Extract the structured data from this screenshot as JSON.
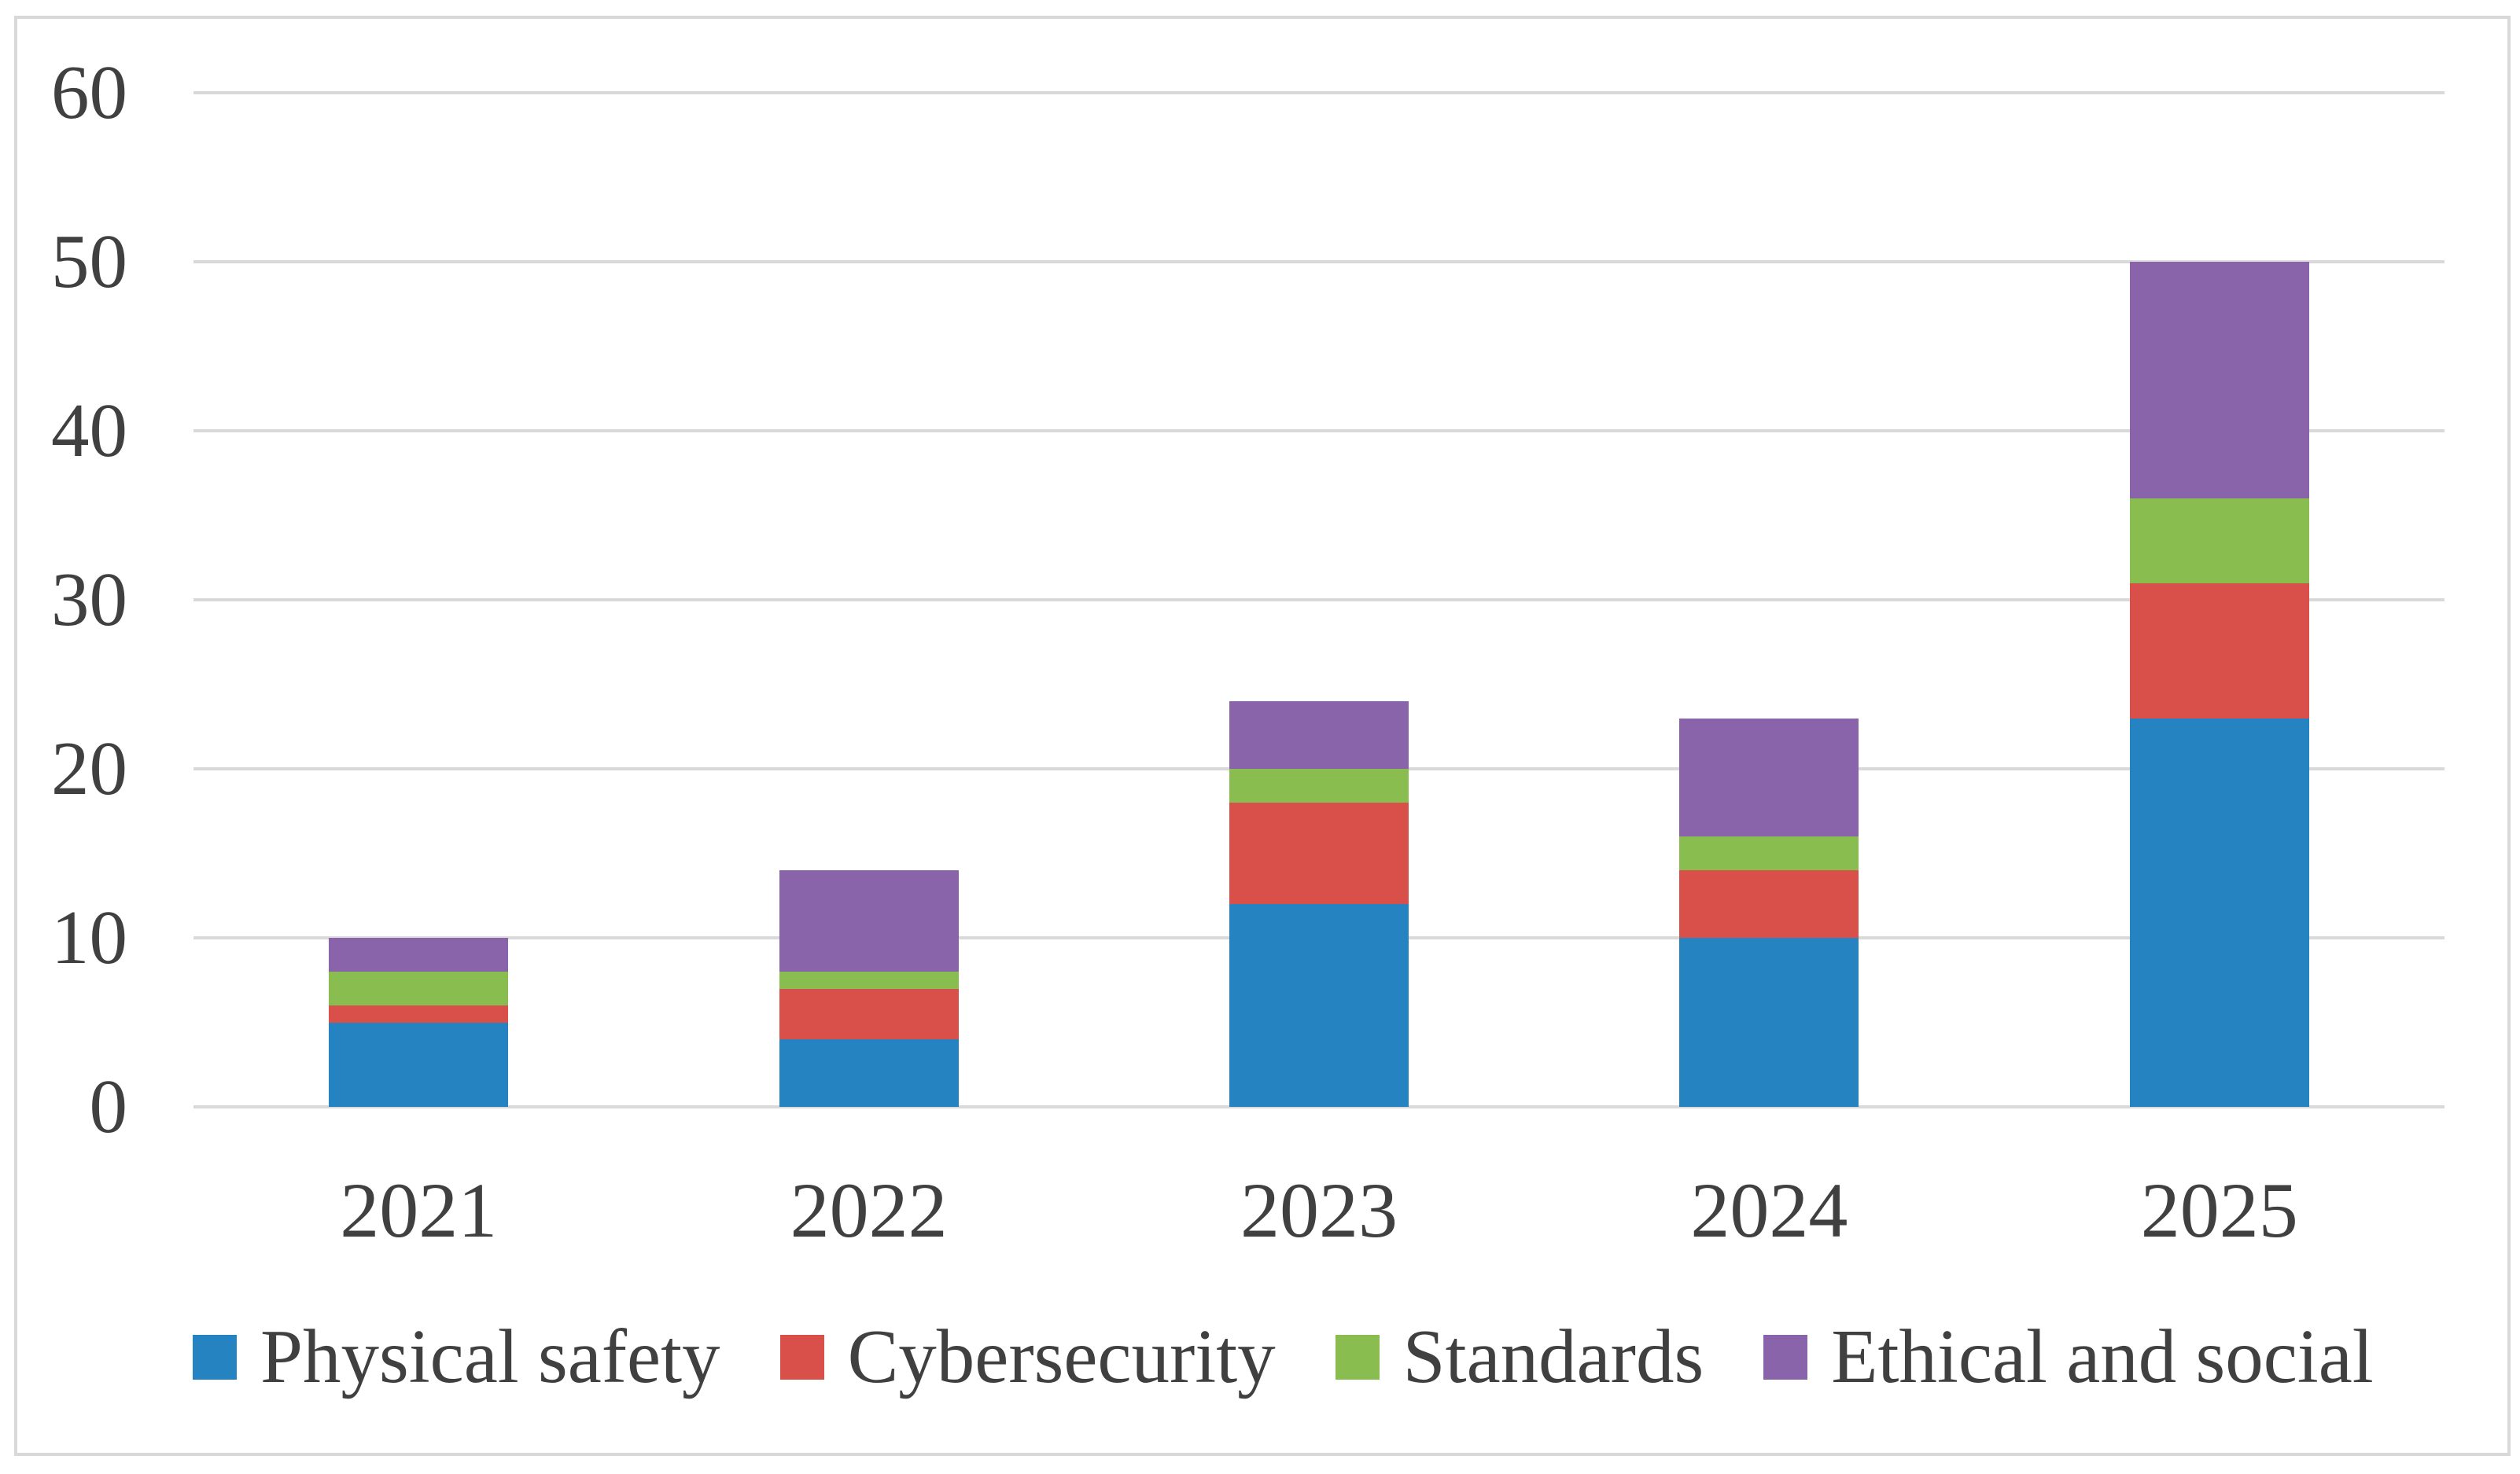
{
  "chart_data": {
    "type": "bar",
    "stacked": true,
    "title": "",
    "categories": [
      "2021",
      "2022",
      "2023",
      "2024",
      "2025"
    ],
    "series": [
      {
        "name": "Physical safety",
        "color": "#2583C1",
        "values": [
          5,
          4,
          12,
          10,
          23
        ]
      },
      {
        "name": "Cybersecurity",
        "color": "#D9504B",
        "values": [
          1,
          3,
          6,
          4,
          8
        ]
      },
      {
        "name": "Standards",
        "color": "#8ABD4F",
        "values": [
          2,
          1,
          2,
          2,
          5
        ]
      },
      {
        "name": "Ethical and social",
        "color": "#8A64AB",
        "values": [
          2,
          6,
          4,
          7,
          14
        ]
      }
    ],
    "y_axis": {
      "min": 0,
      "max": 60,
      "ticks": [
        0,
        10,
        20,
        30,
        40,
        50,
        60
      ]
    },
    "grid": true,
    "legend_position": "bottom",
    "colors": {
      "gridline": "#D9D9D9",
      "border": "#D9D9D9",
      "text": "#404040",
      "background": "#FFFFFF"
    }
  }
}
